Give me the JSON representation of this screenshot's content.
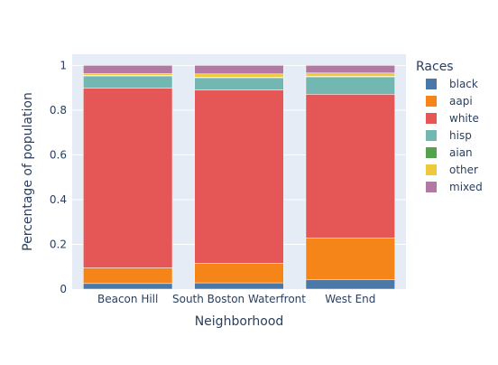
{
  "chart_data": {
    "type": "bar",
    "stacked": true,
    "title": "",
    "xlabel": "Neighborhood",
    "ylabel": "Percentage of population",
    "ylim": [
      0,
      1.05
    ],
    "yticks": [
      "0",
      "0.2",
      "0.4",
      "0.6",
      "0.8",
      "1"
    ],
    "categories": [
      "Beacon Hill",
      "South Boston Waterfront",
      "West End"
    ],
    "legend_title": "Races",
    "legend_position": "right",
    "series": [
      {
        "name": "black",
        "color": "#4c78a8",
        "values": [
          0.025,
          0.028,
          0.043
        ]
      },
      {
        "name": "aapi",
        "color": "#f58518",
        "values": [
          0.07,
          0.087,
          0.186
        ]
      },
      {
        "name": "white",
        "color": "#e45756",
        "values": [
          0.803,
          0.775,
          0.642
        ]
      },
      {
        "name": "hisp",
        "color": "#72b7b2",
        "values": [
          0.055,
          0.055,
          0.078
        ]
      },
      {
        "name": "aian",
        "color": "#54a24b",
        "values": [
          0.002,
          0.002,
          0.002
        ]
      },
      {
        "name": "other",
        "color": "#eeca3b",
        "values": [
          0.008,
          0.015,
          0.015
        ]
      },
      {
        "name": "mixed",
        "color": "#b279a2",
        "values": [
          0.037,
          0.038,
          0.034
        ]
      }
    ]
  }
}
